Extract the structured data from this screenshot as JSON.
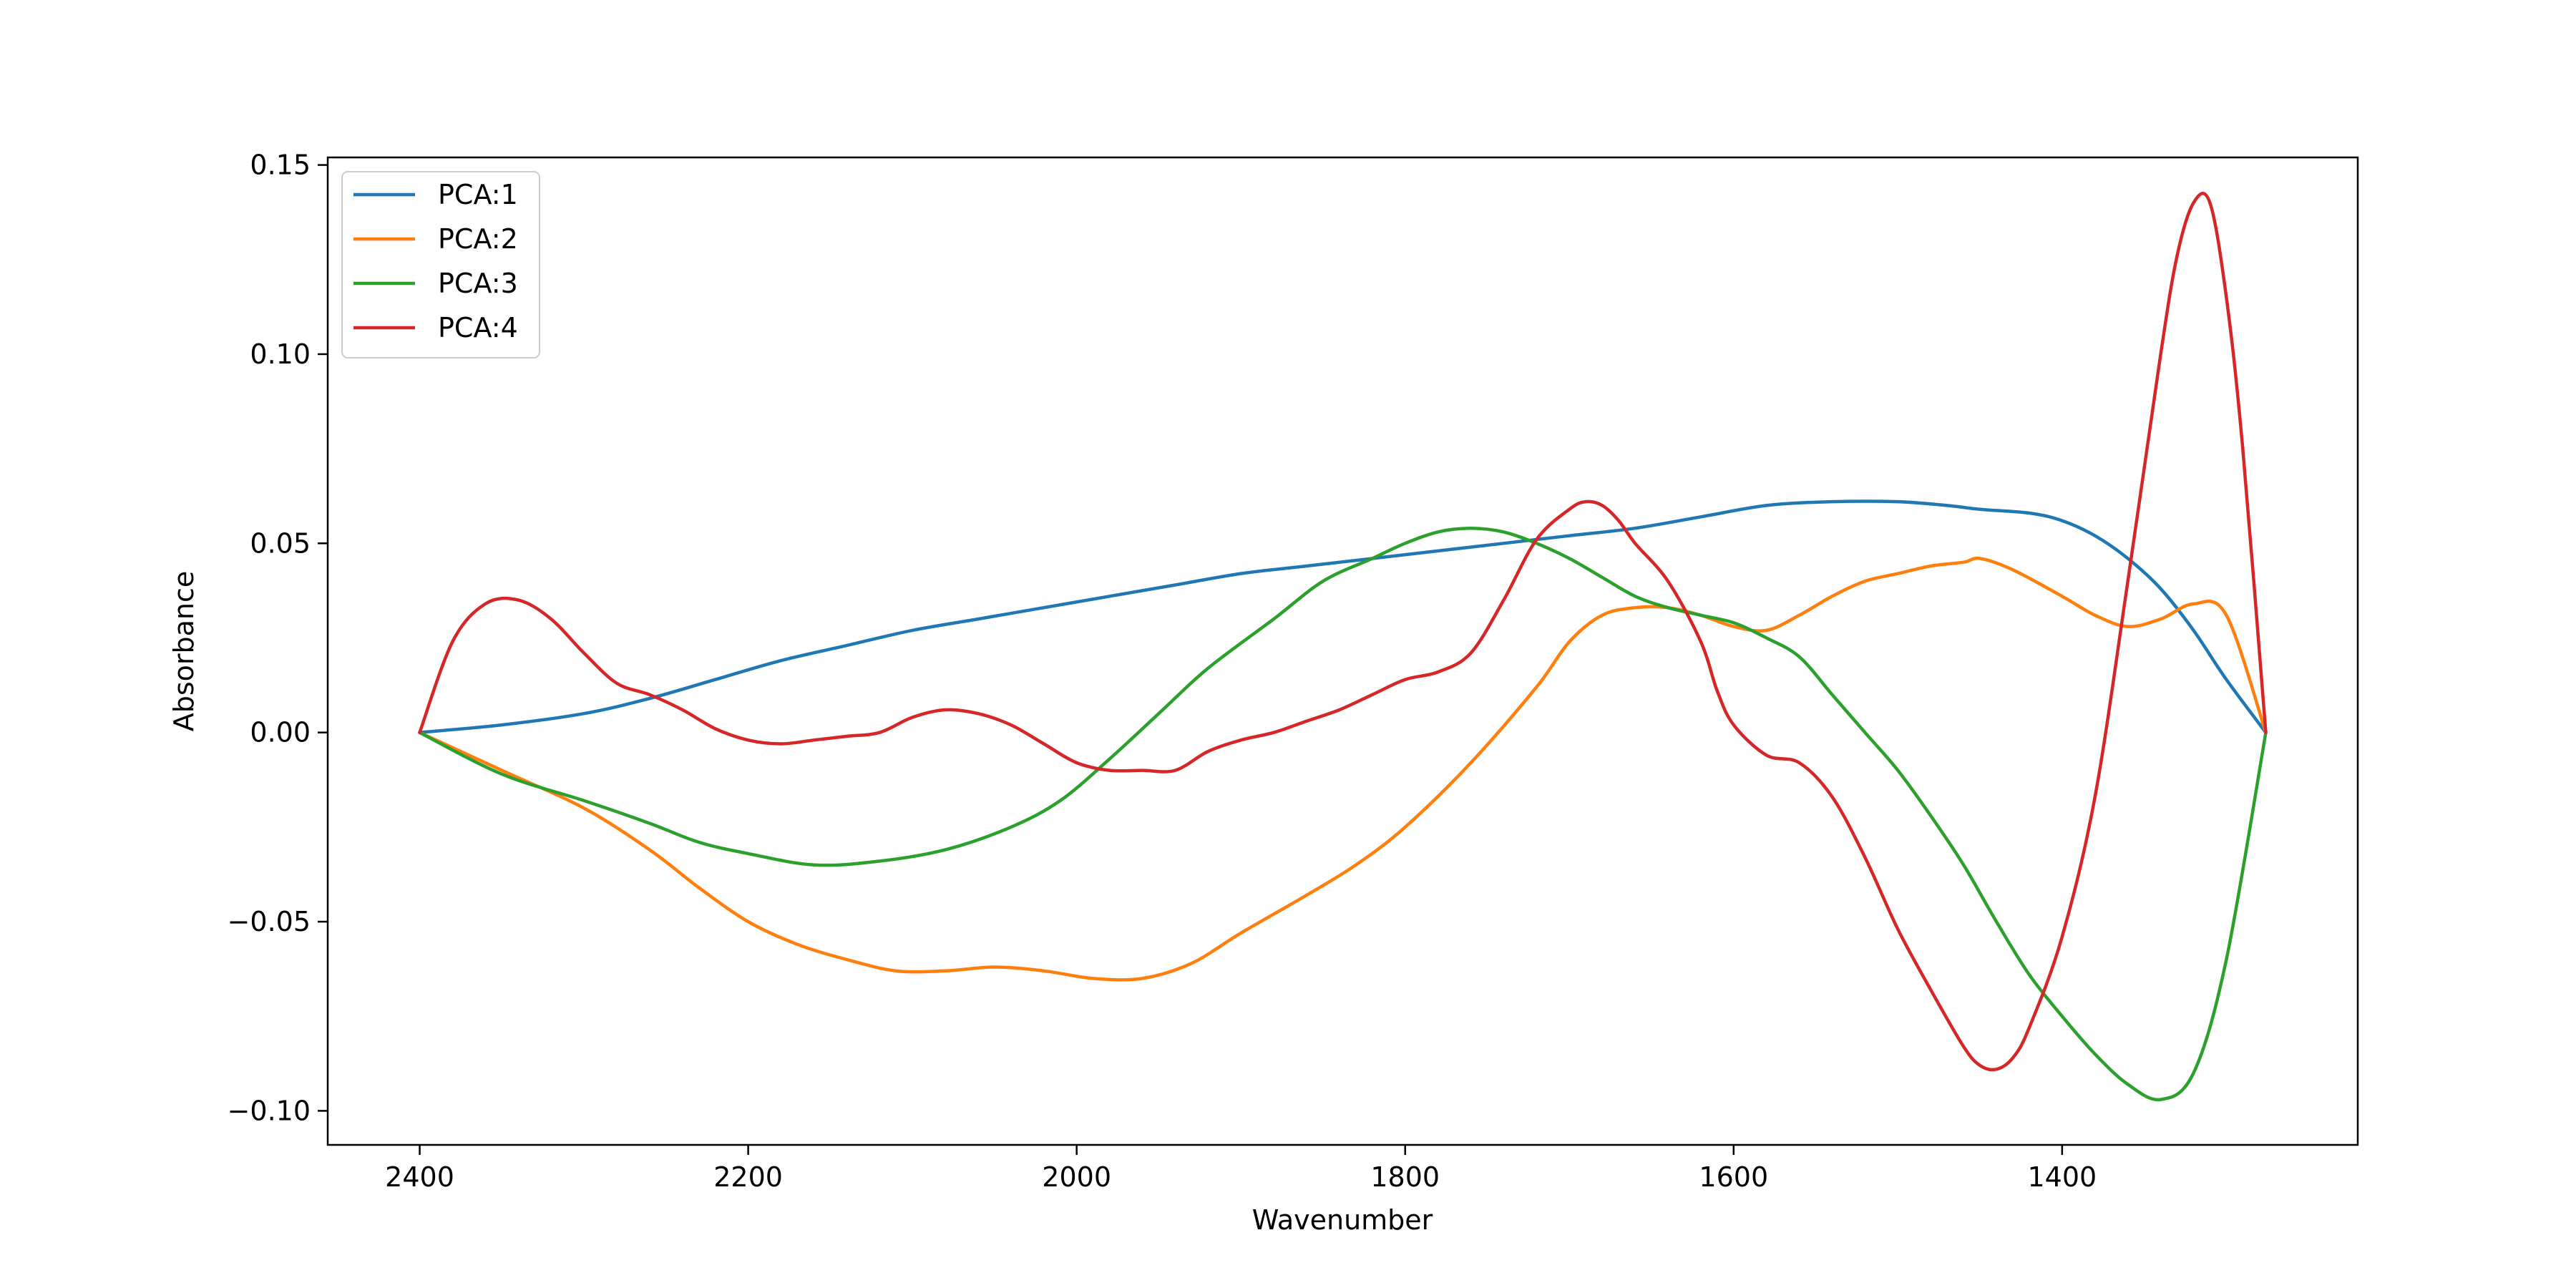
{
  "chart_data": {
    "type": "line",
    "title": "",
    "xlabel": "Wavenumber",
    "ylabel": "Absorbance",
    "xlim": [
      2456,
      1220
    ],
    "ylim": [
      -0.109,
      0.152
    ],
    "x_reversed": true,
    "xticks": [
      2400,
      2200,
      2000,
      1800,
      1600,
      1400
    ],
    "xtick_labels": [
      "2400",
      "2200",
      "2000",
      "1800",
      "1600",
      "1400"
    ],
    "yticks": [
      -0.1,
      -0.05,
      0.0,
      0.05,
      0.1,
      0.15
    ],
    "ytick_labels": [
      "−0.10",
      "−0.05",
      "0.00",
      "0.05",
      "0.10",
      "0.15"
    ],
    "legend_position": "top-left",
    "grid": false,
    "series": [
      {
        "name": "PCA:1",
        "color": "#1f77b4",
        "x": [
          2400,
          2350,
          2300,
          2260,
          2220,
          2180,
          2140,
          2100,
          2060,
          2020,
          1980,
          1940,
          1900,
          1860,
          1820,
          1780,
          1740,
          1700,
          1660,
          1620,
          1580,
          1540,
          1500,
          1470,
          1450,
          1420,
          1400,
          1380,
          1360,
          1340,
          1320,
          1300,
          1276
        ],
        "y": [
          0.0,
          0.002,
          0.005,
          0.009,
          0.014,
          0.019,
          0.023,
          0.027,
          0.03,
          0.033,
          0.036,
          0.039,
          0.042,
          0.044,
          0.046,
          0.048,
          0.05,
          0.052,
          0.054,
          0.057,
          0.06,
          0.061,
          0.061,
          0.06,
          0.059,
          0.058,
          0.056,
          0.052,
          0.046,
          0.038,
          0.027,
          0.014,
          0.0
        ]
      },
      {
        "name": "PCA:2",
        "color": "#ff7f0e",
        "x": [
          2400,
          2350,
          2300,
          2260,
          2230,
          2200,
          2170,
          2140,
          2110,
          2080,
          2050,
          2020,
          1990,
          1960,
          1930,
          1900,
          1860,
          1830,
          1800,
          1760,
          1720,
          1700,
          1680,
          1660,
          1640,
          1620,
          1600,
          1580,
          1560,
          1540,
          1520,
          1500,
          1480,
          1460,
          1450,
          1430,
          1400,
          1380,
          1360,
          1340,
          1320,
          1300,
          1276
        ],
        "y": [
          0.0,
          -0.01,
          -0.02,
          -0.031,
          -0.041,
          -0.05,
          -0.056,
          -0.06,
          -0.063,
          -0.063,
          -0.062,
          -0.063,
          -0.065,
          -0.065,
          -0.061,
          -0.053,
          -0.043,
          -0.035,
          -0.025,
          -0.008,
          0.012,
          0.024,
          0.031,
          0.033,
          0.033,
          0.031,
          0.028,
          0.027,
          0.031,
          0.036,
          0.04,
          0.042,
          0.044,
          0.045,
          0.046,
          0.043,
          0.036,
          0.031,
          0.028,
          0.03,
          0.034,
          0.031,
          0.0
        ]
      },
      {
        "name": "PCA:3",
        "color": "#2ca02c",
        "x": [
          2400,
          2350,
          2300,
          2260,
          2230,
          2200,
          2160,
          2120,
          2080,
          2040,
          2010,
          1980,
          1950,
          1920,
          1880,
          1850,
          1820,
          1800,
          1780,
          1760,
          1740,
          1720,
          1700,
          1680,
          1660,
          1640,
          1620,
          1600,
          1580,
          1560,
          1540,
          1520,
          1500,
          1480,
          1460,
          1440,
          1420,
          1400,
          1380,
          1360,
          1340,
          1320,
          1300,
          1276
        ],
        "y": [
          0.0,
          -0.011,
          -0.018,
          -0.024,
          -0.029,
          -0.032,
          -0.035,
          -0.034,
          -0.031,
          -0.025,
          -0.018,
          -0.007,
          0.005,
          0.017,
          0.03,
          0.04,
          0.046,
          0.05,
          0.053,
          0.054,
          0.053,
          0.05,
          0.046,
          0.041,
          0.036,
          0.033,
          0.031,
          0.029,
          0.025,
          0.02,
          0.01,
          -0.0,
          -0.01,
          -0.022,
          -0.035,
          -0.05,
          -0.064,
          -0.075,
          -0.085,
          -0.093,
          -0.097,
          -0.09,
          -0.06,
          0.0
        ]
      },
      {
        "name": "PCA:4",
        "color": "#d62728",
        "x": [
          2400,
          2380,
          2360,
          2340,
          2320,
          2300,
          2280,
          2260,
          2240,
          2220,
          2200,
          2180,
          2160,
          2140,
          2120,
          2100,
          2080,
          2060,
          2040,
          2020,
          2000,
          1980,
          1960,
          1940,
          1920,
          1900,
          1880,
          1860,
          1840,
          1820,
          1800,
          1780,
          1760,
          1740,
          1720,
          1700,
          1690,
          1680,
          1670,
          1660,
          1640,
          1620,
          1610,
          1600,
          1580,
          1560,
          1540,
          1520,
          1500,
          1480,
          1460,
          1450,
          1440,
          1430,
          1420,
          1400,
          1380,
          1360,
          1340,
          1330,
          1320,
          1310,
          1300,
          1290,
          1276
        ],
        "y": [
          0.0,
          0.024,
          0.034,
          0.035,
          0.03,
          0.021,
          0.013,
          0.01,
          0.006,
          0.001,
          -0.002,
          -0.003,
          -0.002,
          -0.001,
          -0.0,
          0.004,
          0.006,
          0.005,
          0.002,
          -0.003,
          -0.008,
          -0.01,
          -0.01,
          -0.01,
          -0.005,
          -0.002,
          0.0,
          0.003,
          0.006,
          0.01,
          0.014,
          0.016,
          0.021,
          0.035,
          0.051,
          0.059,
          0.061,
          0.06,
          0.056,
          0.05,
          0.04,
          0.024,
          0.011,
          0.002,
          -0.006,
          -0.008,
          -0.017,
          -0.033,
          -0.052,
          -0.068,
          -0.083,
          -0.088,
          -0.089,
          -0.086,
          -0.078,
          -0.054,
          -0.017,
          0.04,
          0.1,
          0.126,
          0.14,
          0.14,
          0.115,
          0.075,
          0.0
        ]
      }
    ]
  }
}
